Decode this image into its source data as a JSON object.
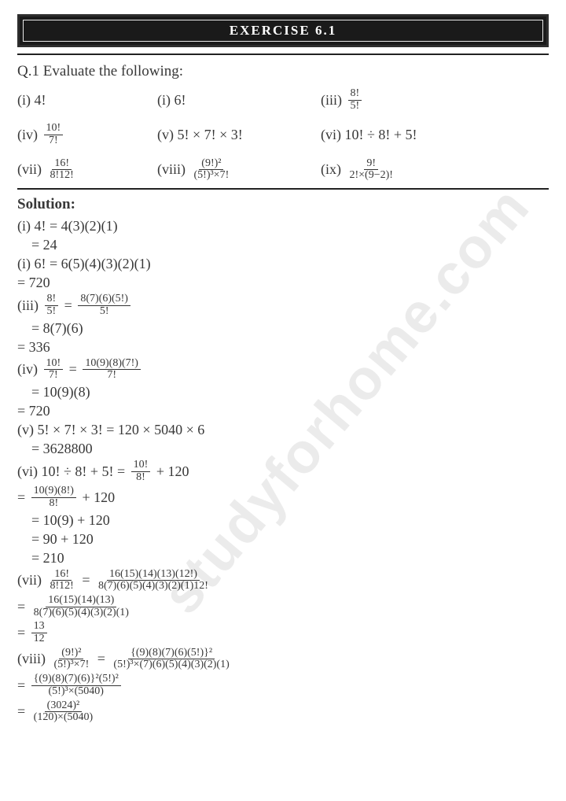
{
  "title": "EXERCISE 6.1",
  "question": "Q.1 Evaluate the following:",
  "items": {
    "i1_label": "(i) 4!",
    "i2_label": "(i) 6!",
    "i3a": "(iii)",
    "i3_num": "8!",
    "i3_den": "5!",
    "i4a": "(iv)",
    "i4_num": "10!",
    "i4_den": "7!",
    "i5_label": "(v) 5! × 7! × 3!",
    "i6_label": "(vi) 10! ÷ 8! + 5!",
    "i7a": "(vii)",
    "i7_num": "16!",
    "i7_den": "8!12!",
    "i8a": "(viii)",
    "i8_num": "(9!)²",
    "i8_den": "(5!)³×7!",
    "i9a": "(ix)",
    "i9_num": "9!",
    "i9_den": "2!×(9−2)!"
  },
  "solution_heading": "Solution:",
  "sol": {
    "s1a": "(i) 4! = 4(3)(2)(1)",
    "s1b": "= 24",
    "s2a": "(i) 6! = 6(5)(4)(3)(2)(1)",
    "s2b": "= 720",
    "s3a_l": "(iii)",
    "s3a_n1": "8!",
    "s3a_d1": "5!",
    "s3a_eq": "=",
    "s3a_n2": "8(7)(6)(5!)",
    "s3a_d2": "5!",
    "s3b": "= 8(7)(6)",
    "s3c": "= 336",
    "s4a_l": "(iv)",
    "s4a_n1": "10!",
    "s4a_d1": "7!",
    "s4a_eq": "=",
    "s4a_n2": "10(9)(8)(7!)",
    "s4a_d2": "7!",
    "s4b": "= 10(9)(8)",
    "s4c": "= 720",
    "s5a": "(v) 5! × 7! × 3! =  120 × 5040 × 6",
    "s5b": "= 3628800",
    "s6a_l": "(vi) 10! ÷ 8! + 5! =",
    "s6a_n": "10!",
    "s6a_d": "8!",
    "s6a_r": "+ 120",
    "s6b_eq": "=",
    "s6b_n": "10(9)(8!)",
    "s6b_d": "8!",
    "s6b_r": "+ 120",
    "s6c": "= 10(9) + 120",
    "s6d": "= 90 + 120",
    "s6e": "= 210",
    "s7a_l": "(vii)",
    "s7a_n1": "16!",
    "s7a_d1": "8!12!",
    "s7a_eq": "=",
    "s7a_n2": "16(15)(14)(13)(12!)",
    "s7a_d2": "8(7)(6)(5)(4)(3)(2)(1)12!",
    "s7b_eq": "=",
    "s7b_n": "16(15)(14)(13)",
    "s7b_d": "8(7)(6)(5)(4)(3)(2)(1)",
    "s7c_eq": "=",
    "s7c_n": "13",
    "s7c_d": "12",
    "s8a_l": "(viii)",
    "s8a_n1": "(9!)²",
    "s8a_d1": "(5!)³×7!",
    "s8a_eq": "=",
    "s8a_n2": "{(9)(8)(7)(6)(5!)}²",
    "s8a_d2": "(5!)³×(7)(6)(5)(4)(3)(2)(1)",
    "s8b_eq": "=",
    "s8b_n": "{(9)(8)(7)(6)}²(5!)²",
    "s8b_d": "(5!)³×(5040)",
    "s8c_eq": "=",
    "s8c_n": "(3024)²",
    "s8c_d": "(120)×(5040)"
  },
  "watermark": "studyforhome.com",
  "colors": {
    "text": "#383838",
    "bg": "#ffffff",
    "title_bg": "#1a1a1a",
    "wm": "rgba(0,0,0,0.08)"
  },
  "typography": {
    "body_fontsize": 18,
    "title_fontsize": 17,
    "frac_fontsize": 14
  }
}
